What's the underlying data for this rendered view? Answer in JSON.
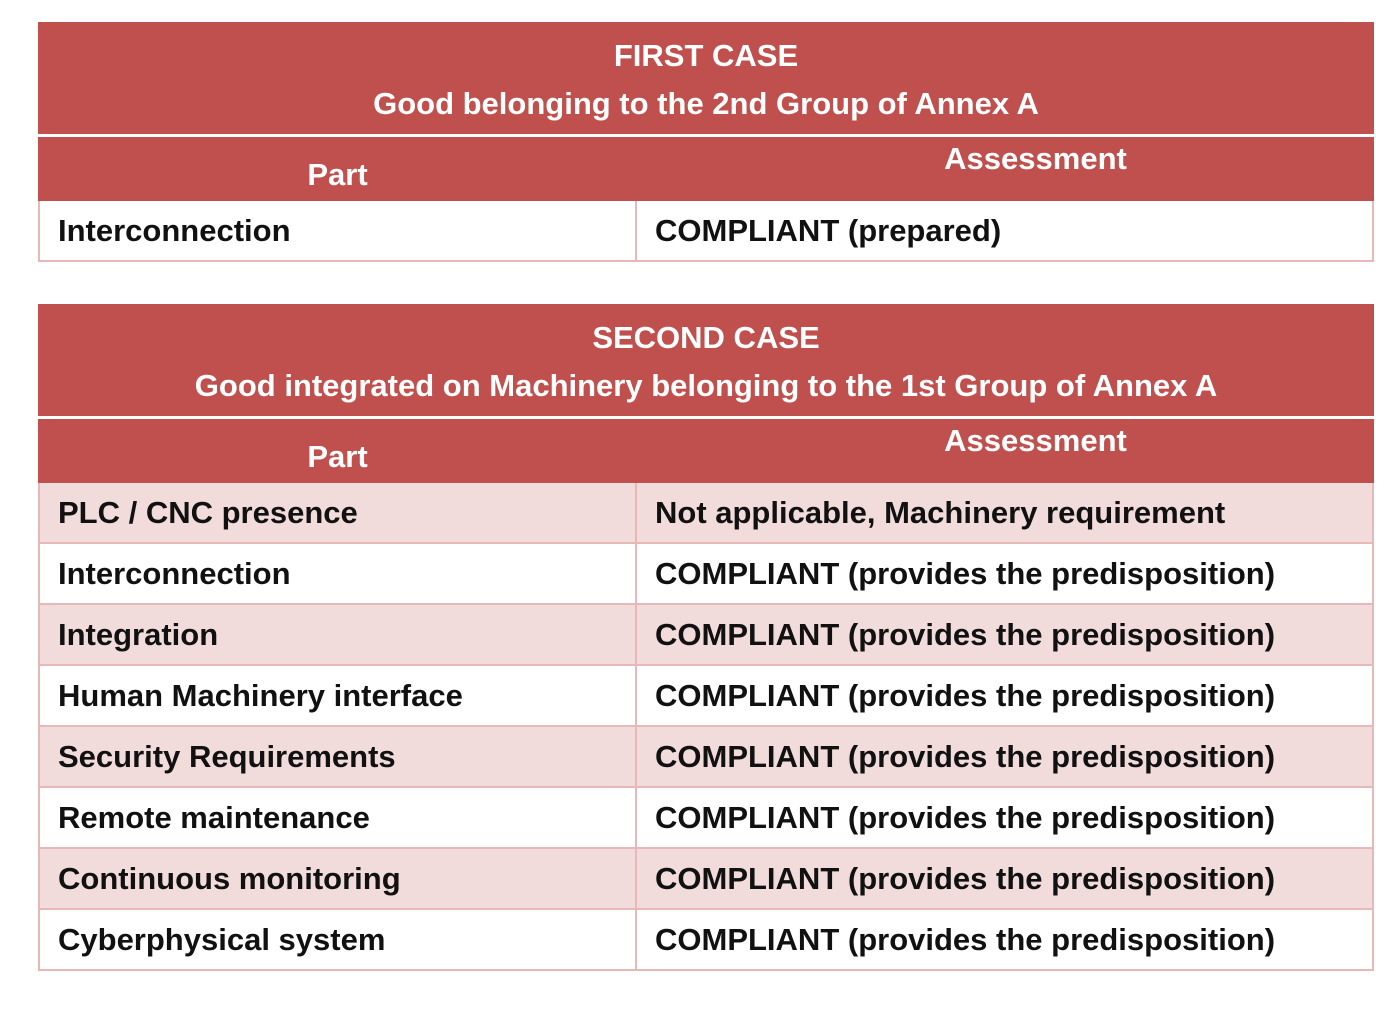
{
  "first_case": {
    "title": "FIRST CASE",
    "subtitle": "Good belonging to the 2nd Group of Annex A",
    "col_part": "Part",
    "col_assessment": "Assessment",
    "rows": [
      {
        "part": "Interconnection",
        "assessment": "COMPLIANT (prepared)"
      }
    ]
  },
  "second_case": {
    "title": "SECOND CASE",
    "subtitle": "Good integrated on Machinery belonging to the 1st Group of Annex A",
    "col_part": "Part",
    "col_assessment": "Assessment",
    "rows": [
      {
        "part": "PLC / CNC presence",
        "assessment": "Not applicable, Machinery requirement"
      },
      {
        "part": "Interconnection",
        "assessment": "COMPLIANT (provides the predisposition)"
      },
      {
        "part": "Integration",
        "assessment": "COMPLIANT (provides the predisposition)"
      },
      {
        "part": "Human Machinery interface",
        "assessment": "COMPLIANT (provides the predisposition)"
      },
      {
        "part": "Security Requirements",
        "assessment": "COMPLIANT (provides the predisposition)"
      },
      {
        "part": "Remote maintenance",
        "assessment": "COMPLIANT (provides the predisposition)"
      },
      {
        "part": "Continuous monitoring",
        "assessment": "COMPLIANT (provides the predisposition)"
      },
      {
        "part": "Cyberphysical system",
        "assessment": "COMPLIANT (provides the predisposition)"
      }
    ]
  },
  "colors": {
    "header_red": "#c0504d",
    "row_shade": "#f2dcdb",
    "row_border": "#e6b9b8"
  }
}
